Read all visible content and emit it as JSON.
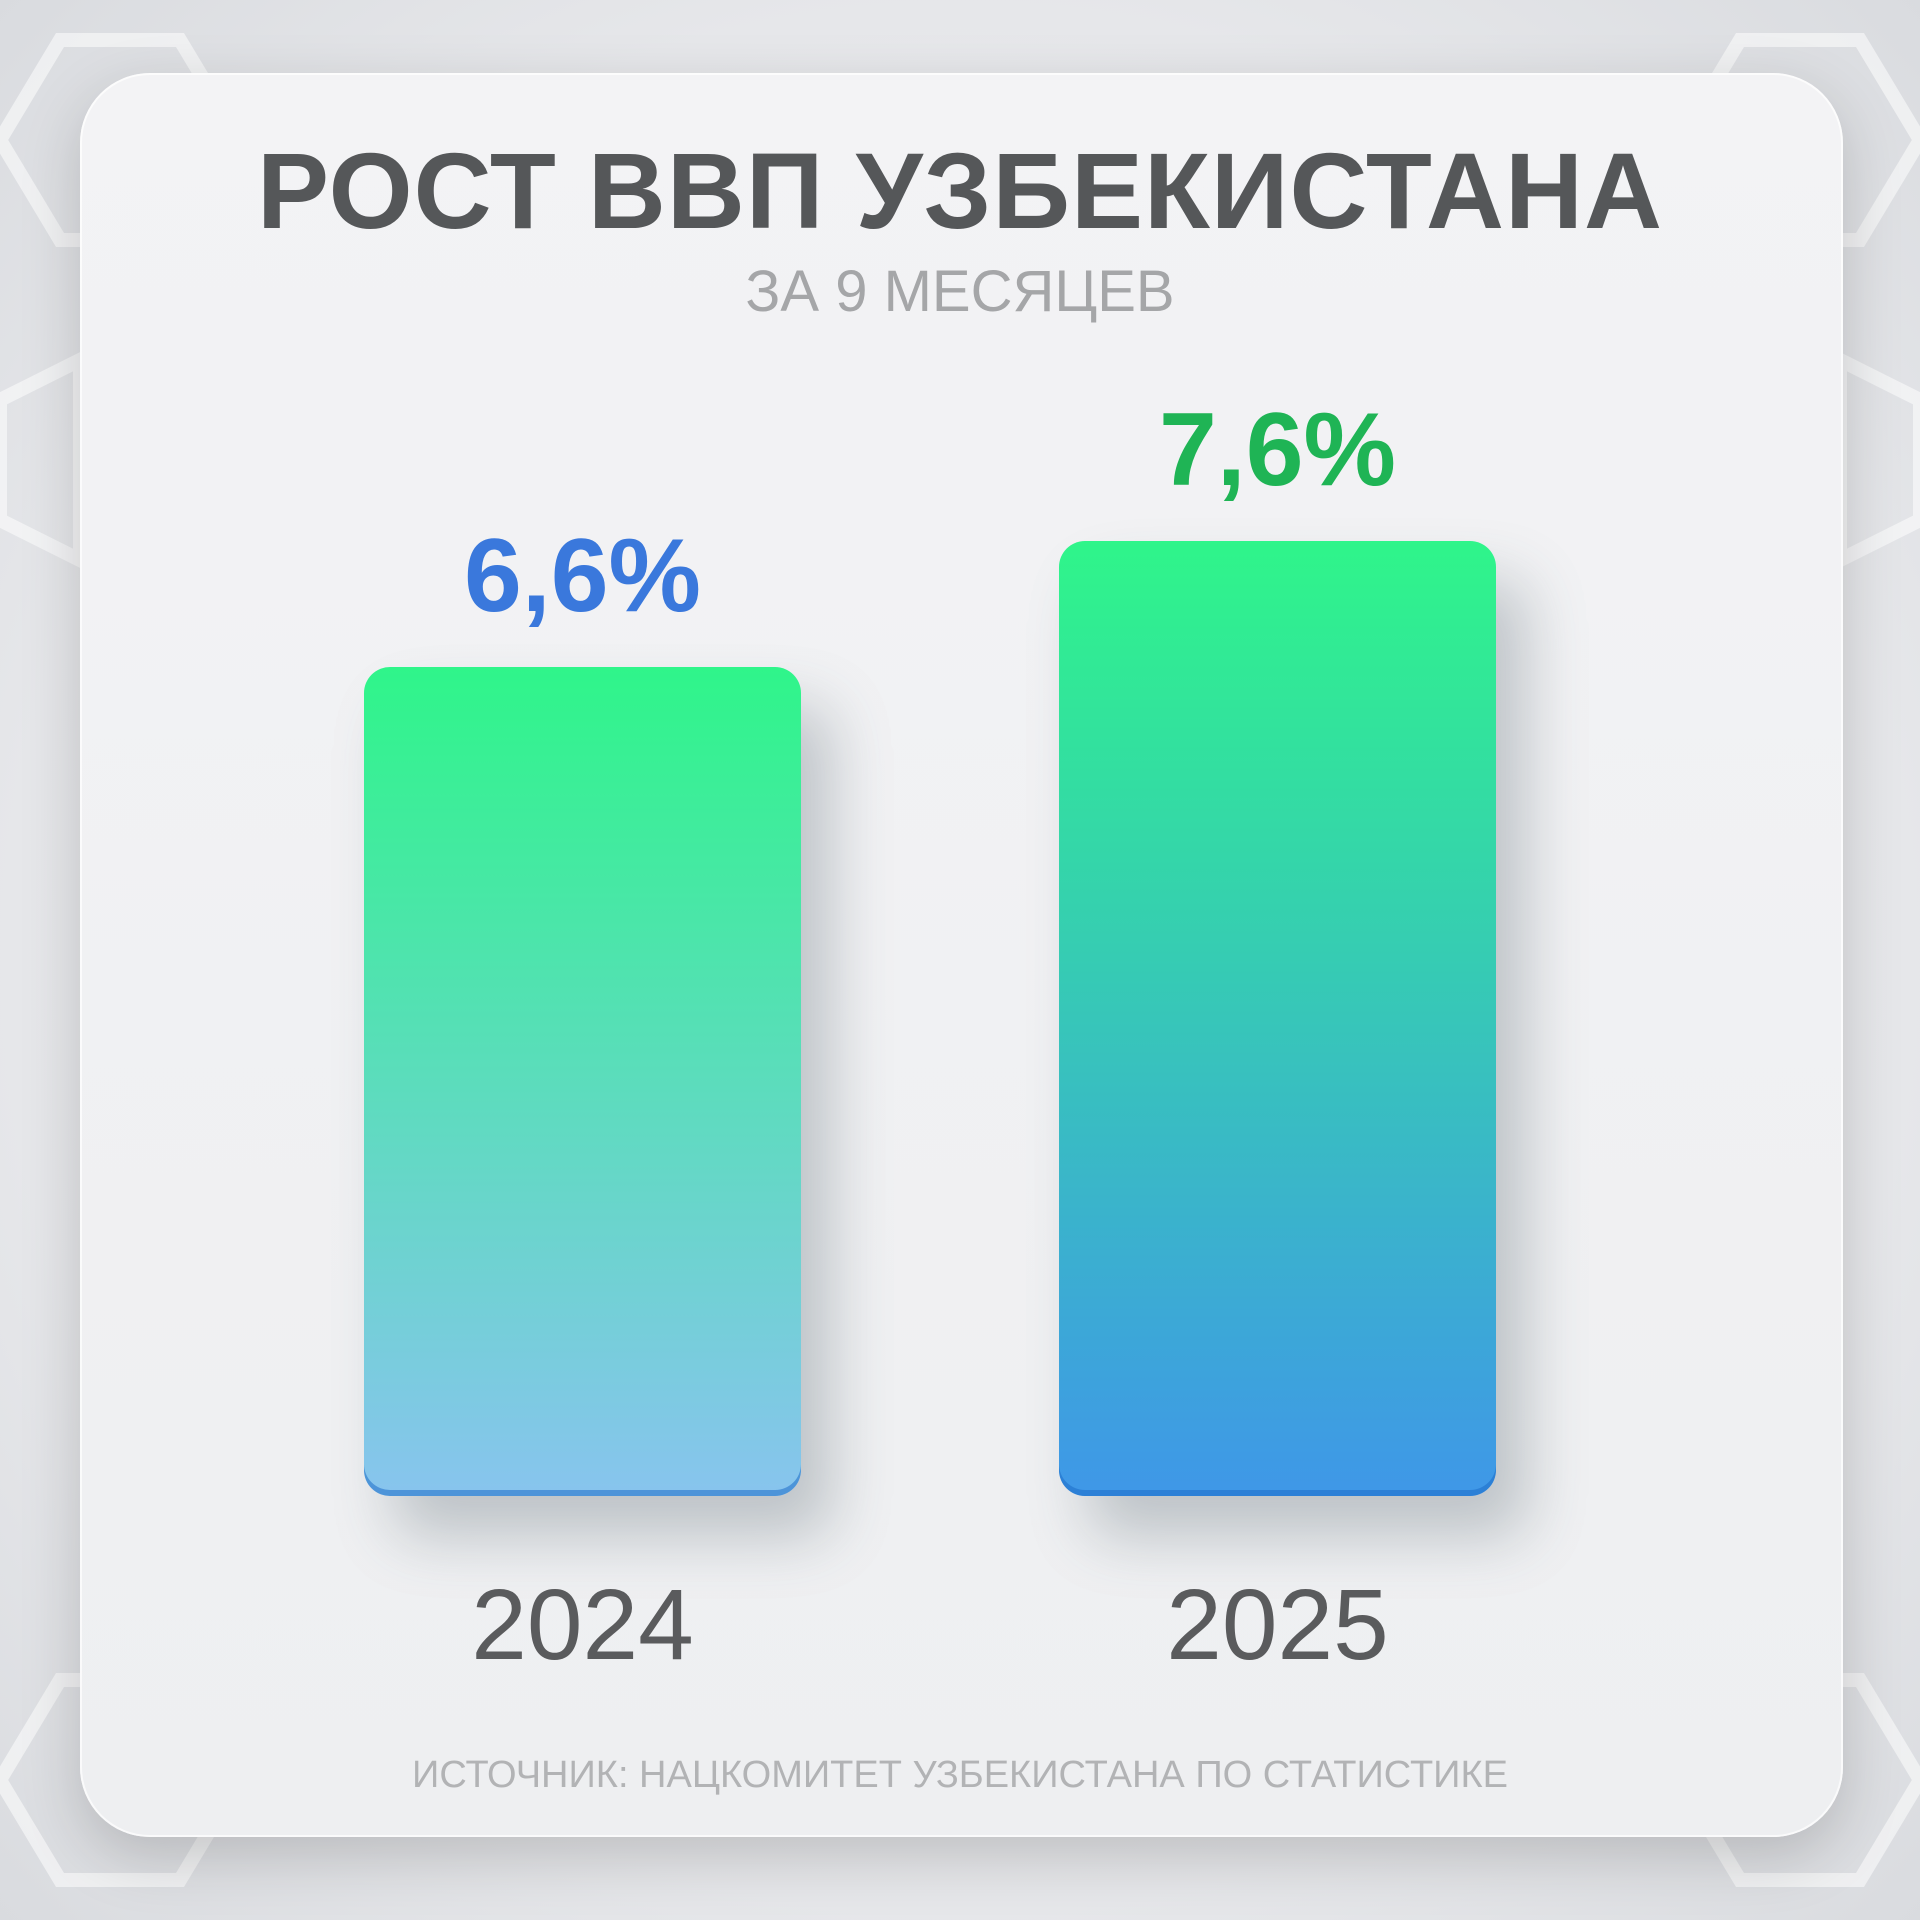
{
  "chart_data": {
    "type": "bar",
    "title": "РОСТ ВВП УЗБЕКИСТАНА",
    "subtitle": "ЗА 9 МЕСЯЦЕВ",
    "categories": [
      "2024",
      "2025"
    ],
    "values": [
      6.6,
      7.6
    ],
    "data_labels": [
      "6,6%",
      "7,6%"
    ],
    "label_colors": [
      "#3a78dc",
      "#1fb455"
    ],
    "bar_gradients": [
      [
        "#2ff58a",
        "#88c4ee"
      ],
      [
        "#2ff58a",
        "#3f97e8"
      ]
    ],
    "ylim": [
      0,
      7.6
    ],
    "grid": false,
    "source": "ИСТОЧНИК: НАЦКОМИТЕТ УЗБЕКИСТАНА ПО СТАТИСТИКЕ"
  }
}
